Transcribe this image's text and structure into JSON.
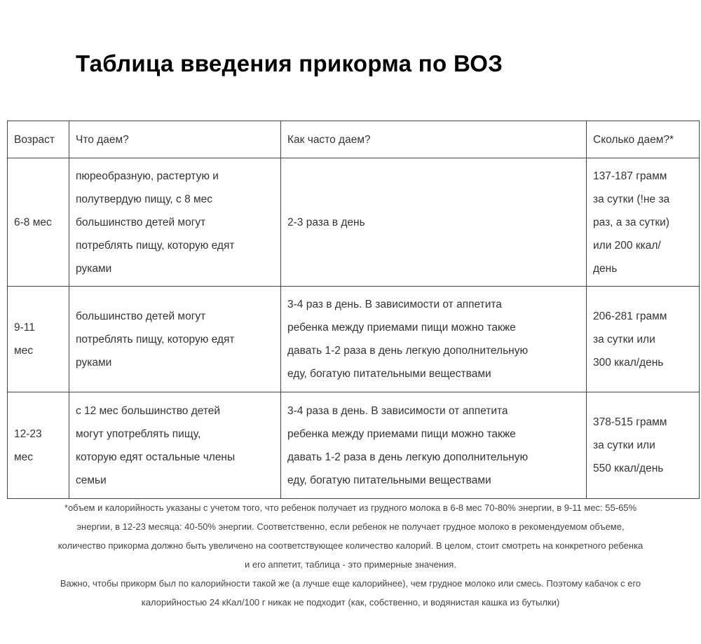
{
  "title": "Таблица введения прикорма по ВОЗ",
  "table": {
    "headers": [
      "Возраст",
      "Что даем?",
      "Как часто даем?",
      "Сколько даем?*"
    ],
    "rows": [
      {
        "age": [
          "6-8 мес"
        ],
        "what": [
          "пюреобразную, растертую и",
          "полутвердую пищу, с 8 мес",
          "большинство детей могут",
          "потреблять пищу, которую едят",
          "руками"
        ],
        "how_often": [
          "2-3 раза в день"
        ],
        "how_much": [
          "137-187 грамм",
          "за сутки (!не за",
          "раз, а за сутки)",
          "или 200 ккал/",
          "день"
        ]
      },
      {
        "age": [
          "9-11",
          "мес"
        ],
        "what": [
          "большинство детей могут",
          "потреблять пищу, которую едят",
          "руками"
        ],
        "how_often": [
          "3-4 раз в день. В зависимости от аппетита",
          "ребенка между приемами пищи можно также",
          "давать 1-2 раза в день легкую дополнительную",
          "еду, богатую питательными веществами"
        ],
        "how_much": [
          "206-281 грамм",
          "за сутки или",
          "300 ккал/день"
        ]
      },
      {
        "age": [
          "12-23",
          "мес"
        ],
        "what": [
          "с 12 мес большинство детей",
          "могут употреблять пищу,",
          "которую едят остальные члены",
          "семьи"
        ],
        "how_often": [
          "3-4 раза в день. В зависимости от аппетита",
          "ребенка между приемами пищи можно также",
          "давать 1-2 раза в день легкую дополнительную",
          "еду, богатую питательными веществами"
        ],
        "how_much": [
          "378-515 грамм",
          "за сутки или",
          "550 ккал/день"
        ]
      }
    ]
  },
  "notes": [
    "*объем и калорийность указаны с учетом того, что ребенок получает из грудного молока в 6-8 мес 70-80% энергии, в 9-11 мес: 55-65%",
    "энергии, в 12-23 месяца: 40-50% энергии. Соответственно, если ребенок не получает грудное молоко в рекомендуемом объеме,",
    "количество прикорма должно быть увеличено на соответствующее количество калорий. В целом, стоит смотреть на конкретного ребенка",
    "и его аппетит, таблица - это примерные значения.",
    "Важно, чтобы прикорм был по калорийности такой же (а лучше еще калорийнее), чем грудное молоко или смесь. Поэтому кабачок с его",
    "калорийностью 24 кКал/100 г никак не подходит (как, собственно, и водянистая кашка из бутылки)"
  ]
}
